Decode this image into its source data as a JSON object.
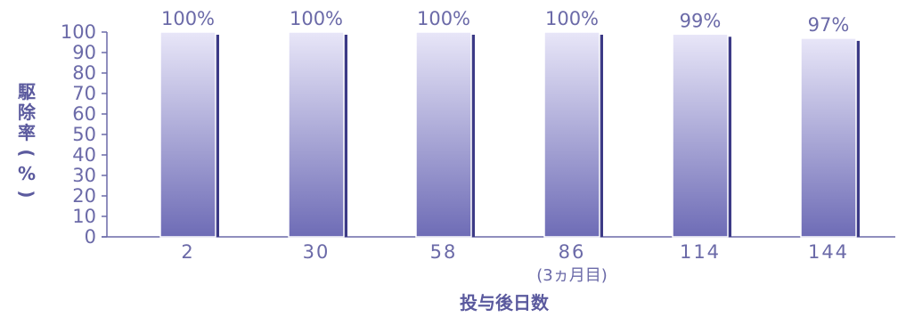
{
  "chart_data": {
    "type": "bar",
    "categories": [
      "2",
      "30",
      "58",
      "86",
      "114",
      "144"
    ],
    "category_notes": [
      "",
      "",
      "",
      "(3ヵ月目)",
      "",
      ""
    ],
    "values": [
      100,
      100,
      100,
      100,
      99,
      97
    ],
    "value_labels": [
      "100%",
      "100%",
      "100%",
      "100%",
      "99%",
      "97%"
    ],
    "xlabel": "投与後日数",
    "ylabel_chars": [
      "駆",
      "除",
      "率",
      "(",
      "%",
      ")"
    ],
    "ylim": [
      0,
      100
    ],
    "yticks": [
      0,
      10,
      20,
      30,
      40,
      50,
      60,
      70,
      80,
      90,
      100
    ],
    "grid": false,
    "legend": "none",
    "colors": {
      "bar_light": "#e8e6f8",
      "bar_dark": "#6e6cb6",
      "bar_edge": "#3c3a86",
      "axis": "#6b6aa8",
      "text": "#6b6aa8"
    }
  }
}
